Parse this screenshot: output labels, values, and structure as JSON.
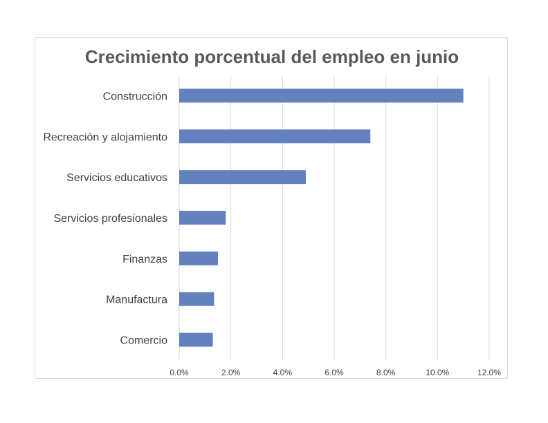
{
  "chart_data": {
    "type": "bar",
    "orientation": "horizontal",
    "title": "Crecimiento porcentual del empleo en junio",
    "xlabel": "",
    "ylabel": "",
    "categories": [
      "Construcción",
      "Recreación y alojamiento",
      "Servicios educativos",
      "Servicios profesionales",
      "Finanzas",
      "Manufactura",
      "Comercio"
    ],
    "values": [
      11.0,
      7.4,
      4.9,
      1.8,
      1.5,
      1.35,
      1.3
    ],
    "xlim": [
      0,
      12
    ],
    "xticks": [
      0,
      2,
      4,
      6,
      8,
      10,
      12
    ],
    "tick_labels": [
      "0.0%",
      "2.0%",
      "4.0%",
      "6.0%",
      "8.0%",
      "10.0%",
      "12.0%"
    ],
    "grid": true,
    "legend": "none",
    "bar_color": "#6281BD"
  }
}
